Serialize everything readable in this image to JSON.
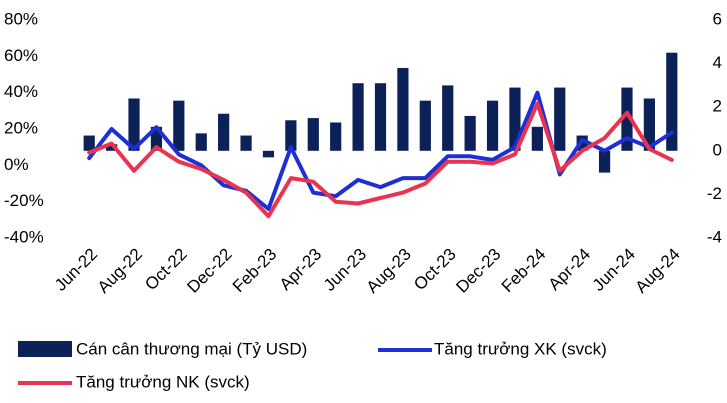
{
  "chart_data": {
    "type": "bar",
    "categories": [
      "Jun-22",
      null,
      "Aug-22",
      null,
      "Oct-22",
      null,
      "Dec-22",
      null,
      "Feb-23",
      null,
      "Apr-23",
      null,
      "Jun-23",
      null,
      "Aug-23",
      null,
      "Oct-23",
      null,
      "Dec-23",
      null,
      "Feb-24",
      null,
      "Apr-24",
      null,
      "Jun-24",
      null,
      "Aug-24"
    ],
    "series": [
      {
        "name": "Cán cân thương mại (Tỷ USD)",
        "type": "bar",
        "axis": "y2",
        "color": "#0b2158",
        "values": [
          0.7,
          0.3,
          2.4,
          1.1,
          2.3,
          0.8,
          1.7,
          0.7,
          -0.3,
          1.4,
          1.5,
          1.3,
          3.1,
          3.1,
          3.8,
          2.3,
          3.0,
          1.6,
          2.3,
          2.9,
          1.1,
          2.9,
          0.7,
          -1.0,
          2.9,
          2.4,
          4.5
        ]
      },
      {
        "name": "Tăng trưởng XK (svck)",
        "type": "line",
        "color": "#1f2fd6",
        "values": [
          4,
          20,
          9,
          21,
          6,
          0,
          -11,
          -14,
          -24,
          10,
          -15,
          -17,
          -8,
          -12,
          -7,
          -7,
          5,
          5,
          3,
          10,
          40,
          -5,
          14,
          8,
          15,
          10,
          18
        ]
      },
      {
        "name": "Tăng trưởng NK (svck)",
        "type": "line",
        "color": "#e8344e",
        "values": [
          7,
          12,
          -3,
          10,
          2,
          -2,
          -8,
          -15,
          -28,
          -7,
          -9,
          -20,
          -21,
          -18,
          -15,
          -10,
          2,
          2,
          1,
          6,
          34,
          -3,
          8,
          15,
          29,
          9,
          3
        ]
      }
    ],
    "ylim": [
      -40,
      80
    ],
    "yticks": [
      {
        "value": -40,
        "label": "-40%"
      },
      {
        "value": -20,
        "label": "-20%"
      },
      {
        "value": 0,
        "label": "0%"
      },
      {
        "value": 20,
        "label": "20%"
      },
      {
        "value": 40,
        "label": "40%"
      },
      {
        "value": 60,
        "label": "60%"
      },
      {
        "value": 80,
        "label": "80%"
      }
    ],
    "y2lim": [
      -4,
      6
    ],
    "y2ticks": [
      -4,
      -2,
      0,
      2,
      4,
      6
    ],
    "legend": "bottom"
  }
}
